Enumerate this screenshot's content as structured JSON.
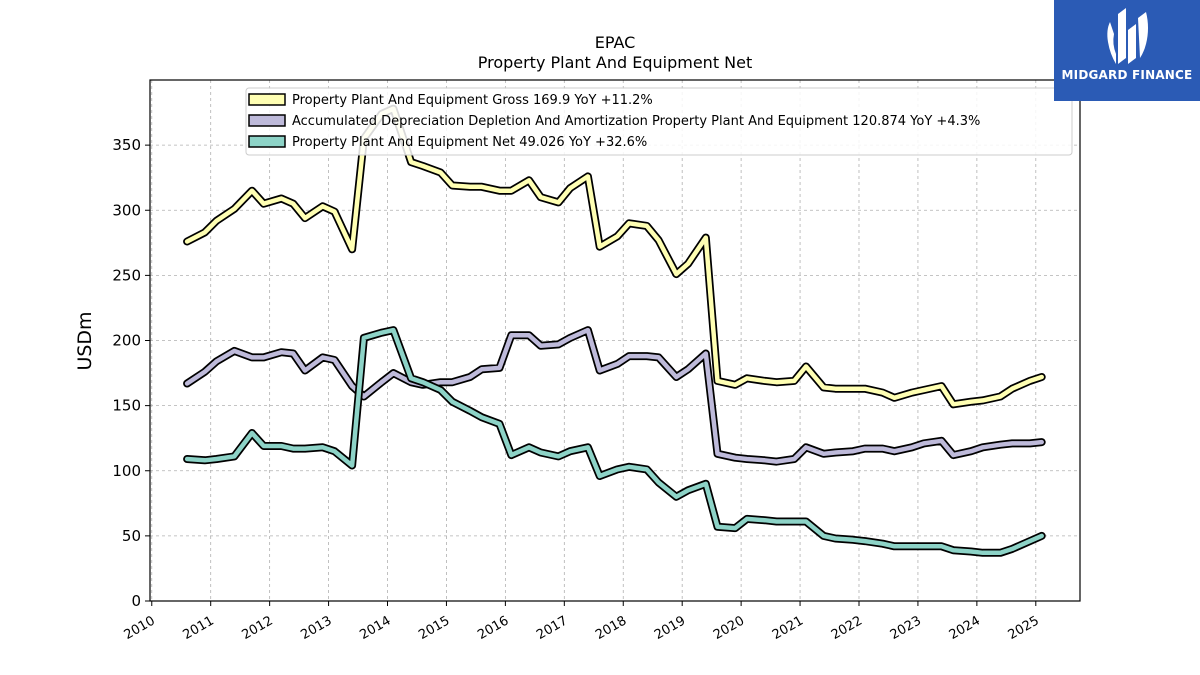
{
  "logo": {
    "text": "MIDGARD FINANCE",
    "background": "#2b5bb5"
  },
  "chart_data": {
    "type": "line",
    "title": "EPAC",
    "subtitle": "Property Plant And Equipment Net",
    "ylabel": "USDm",
    "xlabel": "",
    "ylim": [
      0,
      400
    ],
    "yticks": [
      0,
      50,
      100,
      150,
      200,
      250,
      300,
      350
    ],
    "xlim": [
      2009.97,
      2025.75
    ],
    "xticks": [
      "2010",
      "2011",
      "2012",
      "2013",
      "2014",
      "2015",
      "2016",
      "2017",
      "2018",
      "2019",
      "2020",
      "2021",
      "2022",
      "2023",
      "2024",
      "2025"
    ],
    "grid": true,
    "legend_position": "top-center",
    "series": [
      {
        "name": "Property Plant And Equipment Gross  169.9 YoY +11.2%",
        "color": "#ffffb3",
        "x": [
          2010.6,
          2010.9,
          2011.1,
          2011.4,
          2011.7,
          2011.9,
          2012.2,
          2012.4,
          2012.6,
          2012.9,
          2013.1,
          2013.4,
          2013.6,
          2013.9,
          2014.1,
          2014.4,
          2014.6,
          2014.9,
          2015.1,
          2015.4,
          2015.6,
          2015.9,
          2016.1,
          2016.4,
          2016.6,
          2016.9,
          2017.1,
          2017.4,
          2017.6,
          2017.9,
          2018.1,
          2018.4,
          2018.6,
          2018.9,
          2019.1,
          2019.4,
          2019.6,
          2019.9,
          2020.1,
          2020.4,
          2020.6,
          2020.9,
          2021.1,
          2021.4,
          2021.6,
          2021.9,
          2022.1,
          2022.4,
          2022.6,
          2022.9,
          2023.1,
          2023.4,
          2023.6,
          2023.9,
          2024.1,
          2024.4,
          2024.6,
          2024.9,
          2025.1
        ],
        "y": [
          276,
          283,
          292,
          301,
          315,
          305,
          309,
          305,
          294,
          303,
          299,
          270,
          355,
          374,
          378,
          337,
          334,
          329,
          319,
          318,
          318,
          315,
          315,
          323,
          310,
          306,
          317,
          326,
          272,
          280,
          290,
          288,
          277,
          251,
          259,
          279,
          169,
          166,
          171,
          169,
          168,
          169,
          180,
          164,
          163,
          163,
          163,
          160,
          156,
          160,
          162,
          165,
          151,
          153,
          154,
          157,
          163,
          169,
          172
        ]
      },
      {
        "name": "Accumulated Depreciation Depletion And Amortization Property Plant And Equipment  120.874 YoY +4.3%",
        "color": "#bebada",
        "x": [
          2010.6,
          2010.9,
          2011.1,
          2011.4,
          2011.7,
          2011.9,
          2012.2,
          2012.4,
          2012.6,
          2012.9,
          2013.1,
          2013.4,
          2013.6,
          2013.9,
          2014.1,
          2014.4,
          2014.6,
          2014.9,
          2015.1,
          2015.4,
          2015.6,
          2015.9,
          2016.1,
          2016.4,
          2016.6,
          2016.9,
          2017.1,
          2017.4,
          2017.6,
          2017.9,
          2018.1,
          2018.4,
          2018.6,
          2018.9,
          2019.1,
          2019.4,
          2019.6,
          2019.9,
          2020.1,
          2020.4,
          2020.6,
          2020.9,
          2021.1,
          2021.4,
          2021.6,
          2021.9,
          2022.1,
          2022.4,
          2022.6,
          2022.9,
          2023.1,
          2023.4,
          2023.6,
          2023.9,
          2024.1,
          2024.4,
          2024.6,
          2024.9,
          2025.1
        ],
        "y": [
          167,
          176,
          184,
          192,
          187,
          187,
          191,
          190,
          177,
          187,
          185,
          165,
          157,
          168,
          175,
          168,
          166,
          168,
          168,
          172,
          178,
          179,
          204,
          204,
          196,
          197,
          202,
          208,
          177,
          182,
          188,
          188,
          187,
          172,
          178,
          190,
          113,
          110,
          109,
          108,
          107,
          109,
          118,
          113,
          114,
          115,
          117,
          117,
          115,
          118,
          121,
          123,
          112,
          115,
          118,
          120,
          121,
          121,
          122
        ]
      },
      {
        "name": "Property Plant And Equipment Net  49.026 YoY +32.6%",
        "color": "#8dd3c7",
        "x": [
          2010.6,
          2010.9,
          2011.1,
          2011.4,
          2011.7,
          2011.9,
          2012.2,
          2012.4,
          2012.6,
          2012.9,
          2013.1,
          2013.4,
          2013.6,
          2013.9,
          2014.1,
          2014.4,
          2014.6,
          2014.9,
          2015.1,
          2015.4,
          2015.6,
          2015.9,
          2016.1,
          2016.4,
          2016.6,
          2016.9,
          2017.1,
          2017.4,
          2017.6,
          2017.9,
          2018.1,
          2018.4,
          2018.6,
          2018.9,
          2019.1,
          2019.4,
          2019.6,
          2019.9,
          2020.1,
          2020.4,
          2020.6,
          2020.9,
          2021.1,
          2021.4,
          2021.6,
          2021.9,
          2022.1,
          2022.4,
          2022.6,
          2022.9,
          2023.1,
          2023.4,
          2023.6,
          2023.9,
          2024.1,
          2024.4,
          2024.6,
          2024.9,
          2025.1
        ],
        "y": [
          109,
          108,
          109,
          111,
          129,
          119,
          119,
          117,
          117,
          118,
          115,
          104,
          202,
          206,
          208,
          171,
          168,
          162,
          153,
          146,
          141,
          136,
          112,
          118,
          114,
          111,
          115,
          118,
          96,
          101,
          103,
          101,
          91,
          80,
          85,
          90,
          57,
          56,
          63,
          62,
          61,
          61,
          61,
          50,
          48,
          47,
          46,
          44,
          42,
          42,
          42,
          42,
          39,
          38,
          37,
          37,
          40,
          46,
          50
        ]
      }
    ]
  }
}
